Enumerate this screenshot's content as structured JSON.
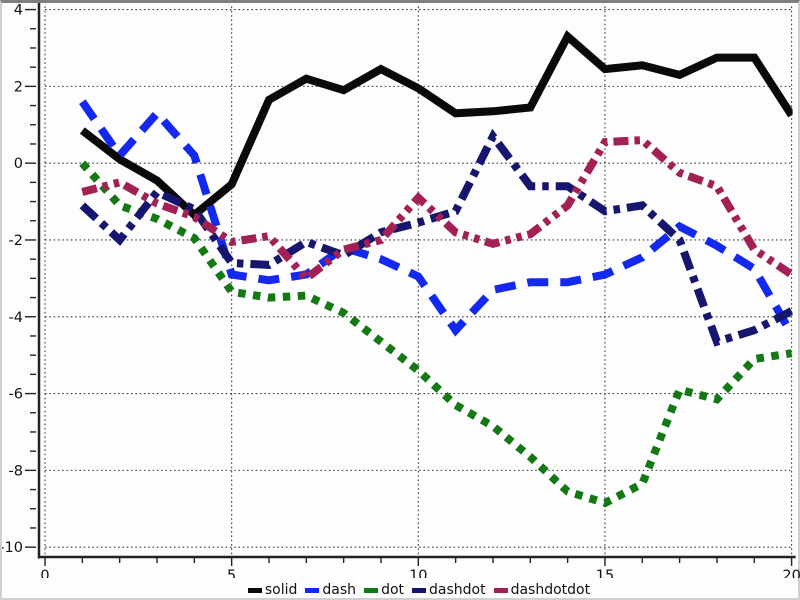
{
  "figure": {
    "background": "#fdfdfd",
    "frame_color": "#7f7f7f",
    "grid_color": "#3a3a3a",
    "axis_color": "#222222",
    "tick_label_color": "#111111"
  },
  "chart_data": {
    "type": "line",
    "title": "",
    "xlabel": "",
    "ylabel": "",
    "xlim": [
      0,
      20
    ],
    "ylim": [
      -10.23,
      4.08
    ],
    "x_major_ticks": [
      0,
      5,
      10,
      15,
      20
    ],
    "x_minor_step": 1,
    "y_major_ticks": [
      4,
      2,
      0,
      -2,
      -4,
      -6,
      -8,
      -10
    ],
    "y_minor_step": 0.5,
    "grid": "dotted",
    "legend_position": "bottom-center",
    "x": [
      1,
      2,
      3,
      4,
      5,
      6,
      7,
      8,
      9,
      10,
      11,
      12,
      13,
      14,
      15,
      16,
      17,
      18,
      19,
      20
    ],
    "series": [
      {
        "name": "solid",
        "color": "#0a0a0a",
        "dash_style": "solid",
        "values": [
          0.85,
          0.1,
          -0.45,
          -1.35,
          -0.55,
          1.65,
          2.2,
          1.9,
          2.45,
          1.95,
          1.3,
          1.35,
          1.45,
          3.3,
          2.45,
          2.55,
          2.3,
          2.75,
          2.75,
          1.25
        ]
      },
      {
        "name": "dash",
        "color": "#1329f0",
        "dash_style": "dash",
        "values": [
          1.6,
          0.2,
          1.3,
          0.2,
          -2.9,
          -3.05,
          -2.9,
          -2.2,
          -2.5,
          -2.95,
          -4.35,
          -3.3,
          -3.1,
          -3.1,
          -2.9,
          -2.45,
          -1.65,
          -2.15,
          -2.75,
          -4.45
        ]
      },
      {
        "name": "dot",
        "color": "#147814",
        "dash_style": "dot",
        "values": [
          0.0,
          -1.1,
          -1.45,
          -1.95,
          -3.35,
          -3.5,
          -3.45,
          -3.9,
          -4.65,
          -5.4,
          -6.3,
          -6.85,
          -7.65,
          -8.55,
          -8.85,
          -8.35,
          -5.9,
          -6.15,
          -5.1,
          -4.95
        ]
      },
      {
        "name": "dashdot",
        "color": "#16166e",
        "dash_style": "dashdot",
        "values": [
          -1.1,
          -2.0,
          -0.75,
          -1.2,
          -2.6,
          -2.65,
          -2.05,
          -2.4,
          -1.8,
          -1.55,
          -1.25,
          0.7,
          -0.6,
          -0.6,
          -1.25,
          -1.1,
          -2.0,
          -4.65,
          -4.35,
          -3.85
        ]
      },
      {
        "name": "dashdotdot",
        "color": "#a22054",
        "dash_style": "dashdotdot",
        "values": [
          -0.75,
          -0.5,
          -1.05,
          -1.4,
          -2.05,
          -1.9,
          -3.0,
          -2.25,
          -2.0,
          -0.9,
          -1.8,
          -2.1,
          -1.85,
          -1.1,
          0.55,
          0.6,
          -0.25,
          -0.6,
          -2.25,
          -2.9
        ]
      }
    ]
  },
  "legend": {
    "items": [
      "solid",
      "dash",
      "dot",
      "dashdot",
      "dashdotdot"
    ]
  }
}
